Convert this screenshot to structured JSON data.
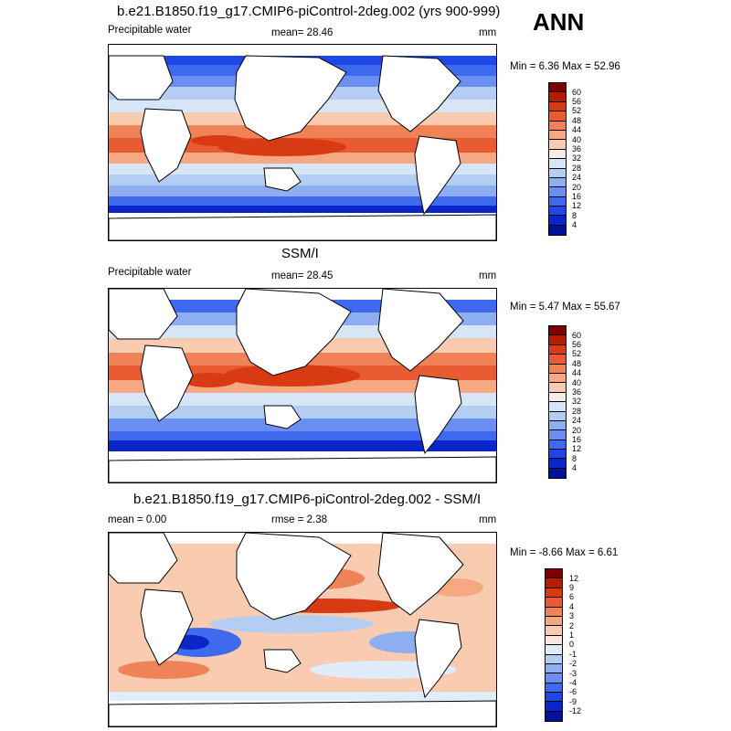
{
  "season": "ANN",
  "panels": [
    {
      "title": "b.e21.B1850.f19_g17.CMIP6-piControl-2deg.002 (yrs 900-999)",
      "left_label": "Precipitable water",
      "center_label": "mean=  28.46",
      "units": "mm",
      "minmax": "Min =   6.36 Max =  52.96"
    },
    {
      "title": "SSM/I",
      "left_label": "Precipitable water",
      "center_label": "mean=  28.45",
      "units": "mm",
      "minmax": "Min =   5.47 Max =  55.67"
    },
    {
      "title": "b.e21.B1850.f19_g17.CMIP6-piControl-2deg.002 - SSM/I",
      "left_label": "mean =    0.00",
      "center_label": "rmse =    2.38",
      "units": "mm",
      "minmax": "Min =  -8.66 Max =   6.61"
    }
  ],
  "legends": {
    "field": {
      "labels": [
        "60",
        "56",
        "52",
        "48",
        "44",
        "40",
        "36",
        "32",
        "28",
        "24",
        "20",
        "16",
        "12",
        "8",
        "4"
      ],
      "colors": [
        "#7f0000",
        "#b71c00",
        "#d83a14",
        "#e95b32",
        "#f08257",
        "#f6a882",
        "#f9cbb1",
        "#f4ece6",
        "#d7e6f7",
        "#b4cdf3",
        "#8daef0",
        "#6a8ff0",
        "#3f6af0",
        "#1d47e6",
        "#0a25c8",
        "#00129a"
      ]
    },
    "diff": {
      "labels": [
        "12",
        "9",
        "6",
        "4",
        "3",
        "2",
        "1",
        "0",
        "-1",
        "-2",
        "-3",
        "-4",
        "-6",
        "-9",
        "-12"
      ],
      "colors": [
        "#7f0000",
        "#b71c00",
        "#d83a14",
        "#e95b32",
        "#f08257",
        "#f6a882",
        "#f9cbb1",
        "#fbe6da",
        "#e0ecfa",
        "#b4cdf3",
        "#8daef0",
        "#6a8ff0",
        "#3f6af0",
        "#1d47e6",
        "#0a25c8",
        "#00129a"
      ]
    }
  }
}
